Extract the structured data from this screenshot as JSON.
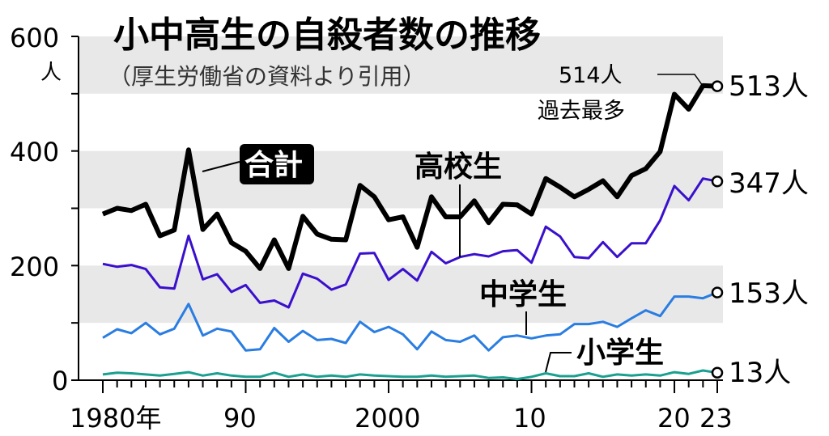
{
  "chart_data": {
    "type": "line",
    "title": "小中高生の自殺者数の推移",
    "subtitle": "（厚生労働省の資料より引用）",
    "y_unit": "人",
    "ylim": [
      0,
      600
    ],
    "y_ticks": [
      "0",
      "200",
      "400",
      "600"
    ],
    "x_tick_labels": [
      "1980年",
      "90",
      "2000",
      "10",
      "20",
      "23"
    ],
    "x": [
      1980,
      1981,
      1982,
      1983,
      1984,
      1985,
      1986,
      1987,
      1988,
      1989,
      1990,
      1991,
      1992,
      1993,
      1994,
      1995,
      1996,
      1997,
      1998,
      1999,
      2000,
      2001,
      2002,
      2003,
      2004,
      2005,
      2006,
      2007,
      2008,
      2009,
      2010,
      2011,
      2012,
      2013,
      2014,
      2015,
      2016,
      2017,
      2018,
      2019,
      2020,
      2021,
      2022,
      2023
    ],
    "series": [
      {
        "name": "合計",
        "color": "#000000",
        "values": [
          290,
          300,
          296,
          307,
          252,
          262,
          402,
          263,
          290,
          240,
          225,
          195,
          245,
          195,
          286,
          255,
          246,
          245,
          340,
          320,
          280,
          285,
          232,
          320,
          285,
          285,
          313,
          275,
          307,
          306,
          290,
          352,
          337,
          320,
          333,
          348,
          320,
          357,
          369,
          399,
          499,
          473,
          514,
          513
        ]
      },
      {
        "name": "高校生",
        "color": "#3a10cc",
        "values": [
          203,
          198,
          201,
          194,
          162,
          160,
          252,
          176,
          185,
          154,
          166,
          135,
          139,
          127,
          186,
          177,
          158,
          167,
          221,
          222,
          175,
          194,
          174,
          224,
          204,
          215,
          220,
          216,
          225,
          227,
          205,
          268,
          251,
          215,
          213,
          241,
          215,
          239,
          239,
          279,
          339,
          314,
          352,
          347
        ]
      },
      {
        "name": "中学生",
        "color": "#2a7de1",
        "values": [
          74,
          89,
          82,
          100,
          80,
          90,
          133,
          78,
          90,
          85,
          52,
          54,
          91,
          67,
          86,
          70,
          72,
          65,
          102,
          84,
          93,
          80,
          54,
          85,
          70,
          67,
          78,
          52,
          75,
          78,
          73,
          78,
          80,
          98,
          98,
          102,
          93,
          108,
          122,
          112,
          146,
          146,
          143,
          153
        ]
      },
      {
        "name": "小学生",
        "color": "#1aa090",
        "values": [
          10,
          13,
          12,
          10,
          8,
          11,
          14,
          8,
          12,
          8,
          6,
          6,
          13,
          6,
          10,
          6,
          8,
          6,
          10,
          8,
          7,
          6,
          6,
          8,
          6,
          7,
          8,
          4,
          5,
          2,
          6,
          12,
          7,
          7,
          12,
          6,
          10,
          8,
          10,
          8,
          14,
          11,
          17,
          13
        ]
      }
    ],
    "end_labels": [
      "513人",
      "347人",
      "153人",
      "13人"
    ],
    "annotation": {
      "line1": "514人",
      "line2": "過去最多"
    },
    "grid_bands": [
      [
        100,
        200
      ],
      [
        300,
        400
      ],
      [
        500,
        600
      ]
    ],
    "grid_band_color": "#e8e8e8"
  }
}
